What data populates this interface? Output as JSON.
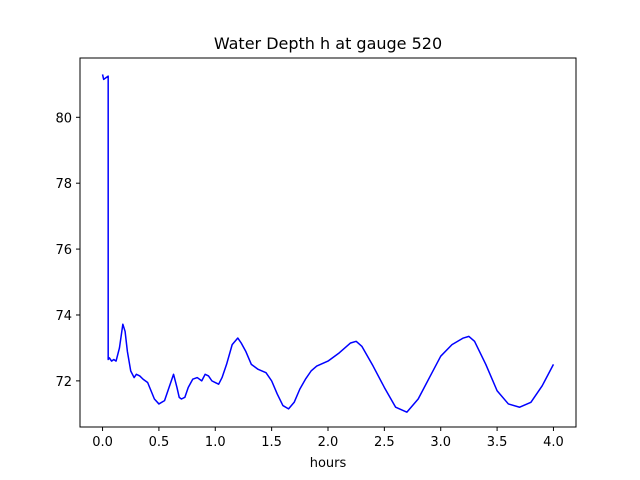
{
  "chart_data": {
    "type": "line",
    "title": "Water Depth h at gauge 520",
    "xlabel": "hours",
    "ylabel": "",
    "xlim": [
      -0.2,
      4.2
    ],
    "ylim": [
      70.6,
      81.8
    ],
    "grid": false,
    "line_color": "#0000ff",
    "xticks": [
      0.0,
      0.5,
      1.0,
      1.5,
      2.0,
      2.5,
      3.0,
      3.5,
      4.0
    ],
    "xtick_labels": [
      "0.0",
      "0.5",
      "1.0",
      "1.5",
      "2.0",
      "2.5",
      "3.0",
      "3.5",
      "4.0"
    ],
    "yticks": [
      72,
      74,
      76,
      78,
      80
    ],
    "ytick_labels": [
      "72",
      "74",
      "76",
      "78",
      "80"
    ],
    "series": [
      {
        "x": [
          0.0,
          0.01,
          0.03,
          0.05,
          0.05,
          0.06,
          0.08,
          0.1,
          0.12,
          0.15,
          0.18,
          0.2,
          0.22,
          0.25,
          0.28,
          0.3,
          0.33,
          0.36,
          0.4,
          0.43,
          0.46,
          0.5,
          0.55,
          0.6,
          0.63,
          0.66,
          0.68,
          0.7,
          0.73,
          0.76,
          0.8,
          0.84,
          0.88,
          0.91,
          0.94,
          0.97,
          1.0,
          1.03,
          1.06,
          1.1,
          1.15,
          1.2,
          1.23,
          1.27,
          1.32,
          1.38,
          1.45,
          1.5,
          1.55,
          1.6,
          1.65,
          1.7,
          1.75,
          1.8,
          1.85,
          1.9,
          2.0,
          2.1,
          2.2,
          2.25,
          2.3,
          2.4,
          2.5,
          2.6,
          2.7,
          2.8,
          2.9,
          3.0,
          3.1,
          3.2,
          3.25,
          3.3,
          3.4,
          3.5,
          3.6,
          3.7,
          3.8,
          3.9,
          4.0
        ],
        "y": [
          81.3,
          81.15,
          81.2,
          81.25,
          72.65,
          72.7,
          72.6,
          72.65,
          72.6,
          73.0,
          73.72,
          73.5,
          72.9,
          72.3,
          72.1,
          72.2,
          72.15,
          72.05,
          71.95,
          71.7,
          71.45,
          71.3,
          71.4,
          71.9,
          72.2,
          71.8,
          71.5,
          71.45,
          71.5,
          71.8,
          72.05,
          72.1,
          72.0,
          72.2,
          72.15,
          72.0,
          71.95,
          71.9,
          72.1,
          72.5,
          73.1,
          73.3,
          73.15,
          72.9,
          72.5,
          72.35,
          72.25,
          72.0,
          71.6,
          71.25,
          71.15,
          71.35,
          71.75,
          72.05,
          72.3,
          72.45,
          72.6,
          72.85,
          73.15,
          73.2,
          73.05,
          72.45,
          71.8,
          71.2,
          71.05,
          71.45,
          72.1,
          72.75,
          73.1,
          73.3,
          73.35,
          73.2,
          72.5,
          71.7,
          71.3,
          71.2,
          71.35,
          71.85,
          72.5
        ]
      }
    ]
  }
}
